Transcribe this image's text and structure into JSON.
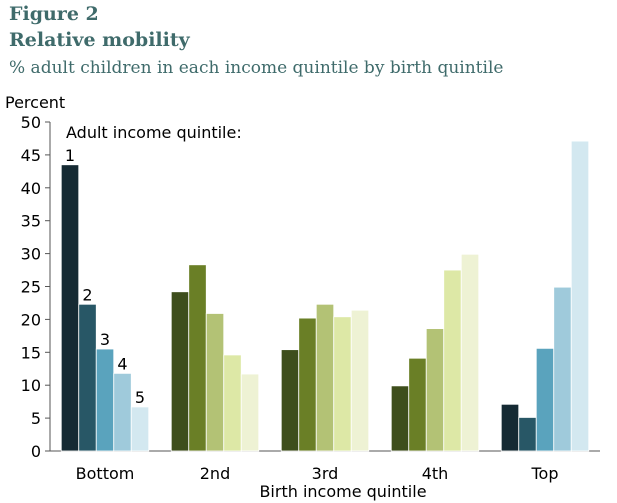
{
  "figure_label": "Figure 2",
  "title": "Relative mobility",
  "subtitle": "% adult children in each income quintile by birth quintile",
  "chart_data": {
    "type": "bar",
    "ylabel": "Percent",
    "xlabel": "Birth income quintile",
    "legend_title": "Adult income quintile:",
    "ylim": [
      0,
      50
    ],
    "yticks": [
      0,
      5,
      10,
      15,
      20,
      25,
      30,
      35,
      40,
      45,
      50
    ],
    "categories": [
      "Bottom",
      "2nd",
      "3rd",
      "4th",
      "Top"
    ],
    "series_labels": [
      "1",
      "2",
      "3",
      "4",
      "5"
    ],
    "values": [
      [
        43.5,
        22.3,
        15.5,
        11.8,
        6.7
      ],
      [
        24.2,
        28.3,
        20.9,
        14.6,
        11.7
      ],
      [
        15.4,
        20.2,
        22.3,
        20.4,
        21.4
      ],
      [
        9.9,
        14.1,
        18.6,
        27.5,
        29.9
      ],
      [
        7.1,
        5.1,
        15.6,
        24.9,
        47.1
      ]
    ],
    "colors": [
      [
        "#152a33",
        "#285766",
        "#5aa3bd",
        "#9fcadb",
        "#d3e8f0"
      ],
      [
        "#3e4e1c",
        "#6a7f26",
        "#b3c275",
        "#dde8a6",
        "#eef2d4"
      ],
      [
        "#3e4e1c",
        "#6a7f26",
        "#b3c275",
        "#dde8a6",
        "#eef2d4"
      ],
      [
        "#3e4e1c",
        "#6a7f26",
        "#b3c275",
        "#dde8a6",
        "#eef2d4"
      ],
      [
        "#152a33",
        "#285766",
        "#5aa3bd",
        "#9fcadb",
        "#d3e8f0"
      ]
    ]
  }
}
